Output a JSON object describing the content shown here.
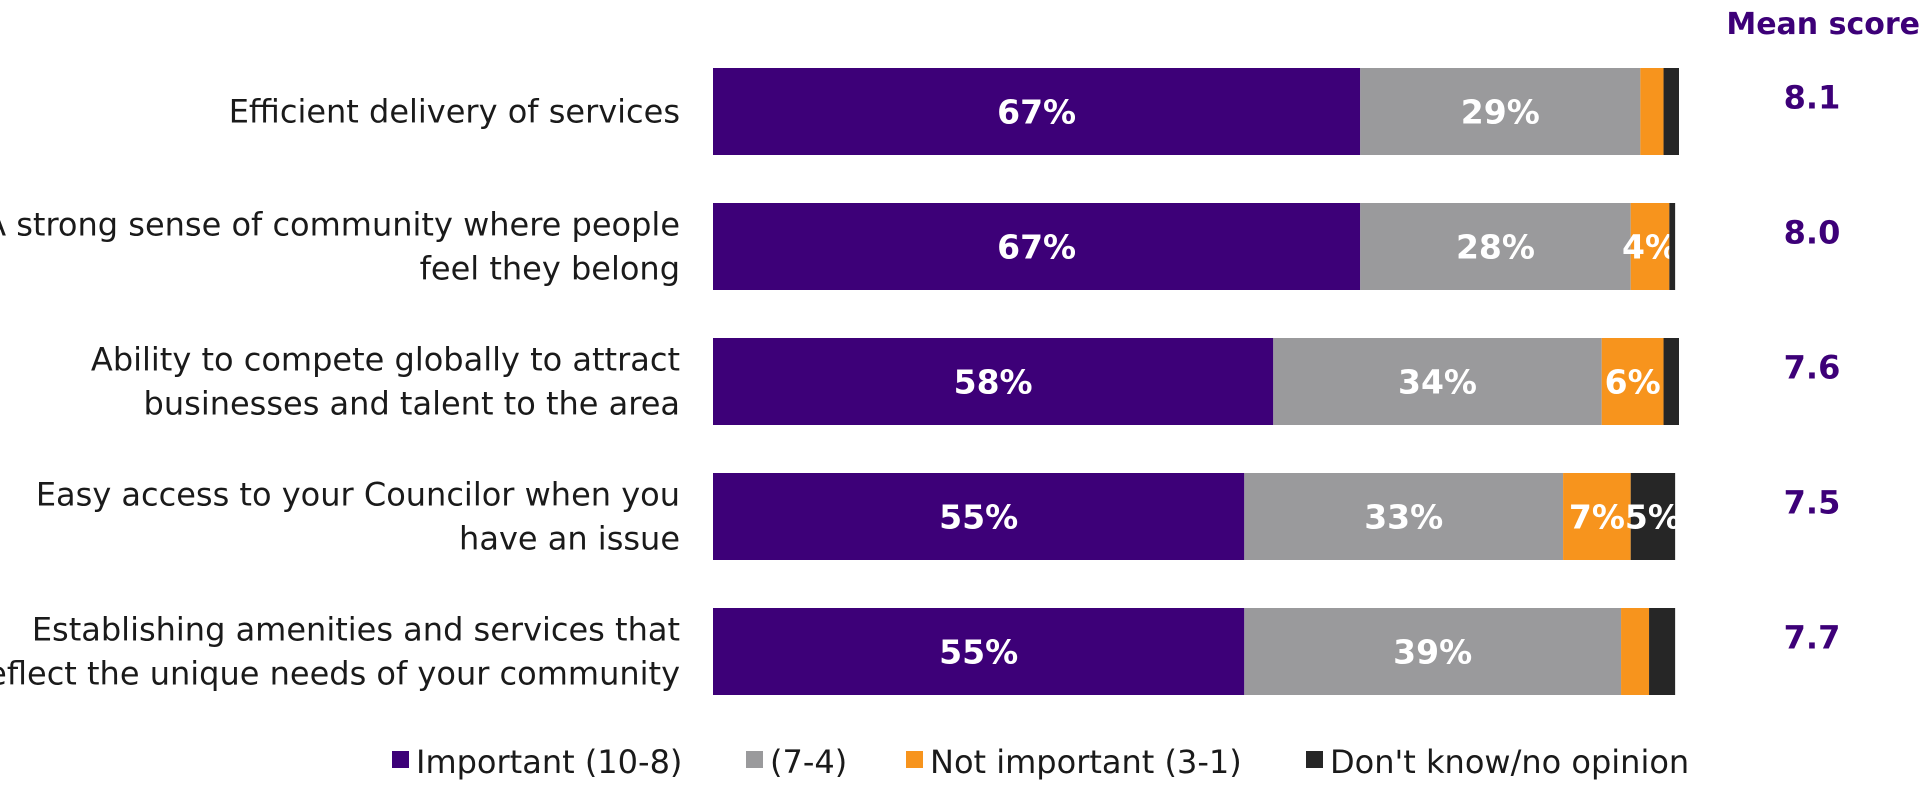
{
  "chart_data": {
    "type": "bar",
    "orientation": "horizontal",
    "stacked": true,
    "categories": [
      [
        "Efficient delivery of services"
      ],
      [
        "A strong sense of community where people",
        "feel they belong"
      ],
      [
        "Ability to compete globally to attract",
        "businesses and talent to the area"
      ],
      [
        "Easy access to your Councilor when you",
        "have an issue"
      ],
      [
        "Establishing amenities and services that",
        "reflect the unique needs of your community"
      ]
    ],
    "series": [
      {
        "name": "Important (10-8)",
        "color": "#3d0078",
        "values": [
          67,
          67,
          58,
          55,
          55
        ],
        "labels": [
          "67%",
          "67%",
          "58%",
          "55%",
          "55%"
        ]
      },
      {
        "name": "(7-4)",
        "color": "#9a9a9c",
        "values": [
          29,
          28,
          34,
          33,
          39
        ],
        "labels": [
          "29%",
          "28%",
          "34%",
          "33%",
          "39%"
        ]
      },
      {
        "name": "Not important (3-1)",
        "color": "#f7941d",
        "values": [
          2.4,
          4,
          6.4,
          7,
          2.9
        ],
        "labels": [
          "",
          "4%",
          "6%",
          "7%",
          ""
        ]
      },
      {
        "name": "Don't know/no opinion",
        "color": "#262626",
        "values": [
          1.6,
          0.6,
          1.6,
          4.6,
          2.7
        ],
        "labels": [
          "",
          "",
          "",
          "5%",
          ""
        ]
      }
    ],
    "mean_title": "Mean score",
    "mean_scores": [
      "8.1",
      "8.0",
      "7.6",
      "7.5",
      "7.7"
    ],
    "xlim": [
      0,
      100
    ],
    "grid": false,
    "legend_position": "bottom"
  }
}
